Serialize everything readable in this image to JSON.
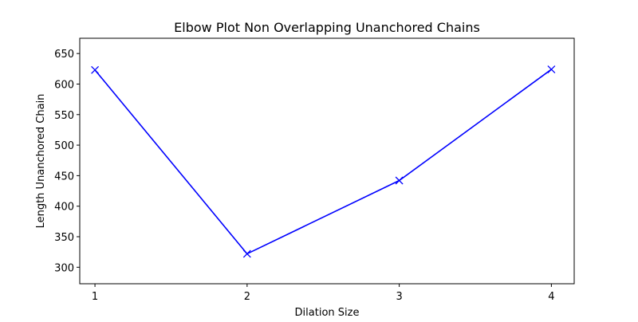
{
  "chart_data": {
    "type": "line",
    "title": "Elbow Plot Non Overlapping Unanchored Chains",
    "xlabel": "Dilation Size",
    "ylabel": "Length Unanchored Chain",
    "x": [
      1,
      2,
      3,
      4
    ],
    "series": [
      {
        "values": [
          623,
          322,
          442,
          624
        ],
        "color": "#0000ff",
        "marker": "x"
      }
    ],
    "xlim": [
      0.9,
      4.15
    ],
    "ylim": [
      273,
      675
    ],
    "xticks": [
      1,
      2,
      3,
      4
    ],
    "yticks": [
      300,
      350,
      400,
      450,
      500,
      550,
      600,
      650
    ],
    "grid": false,
    "legend": false
  }
}
